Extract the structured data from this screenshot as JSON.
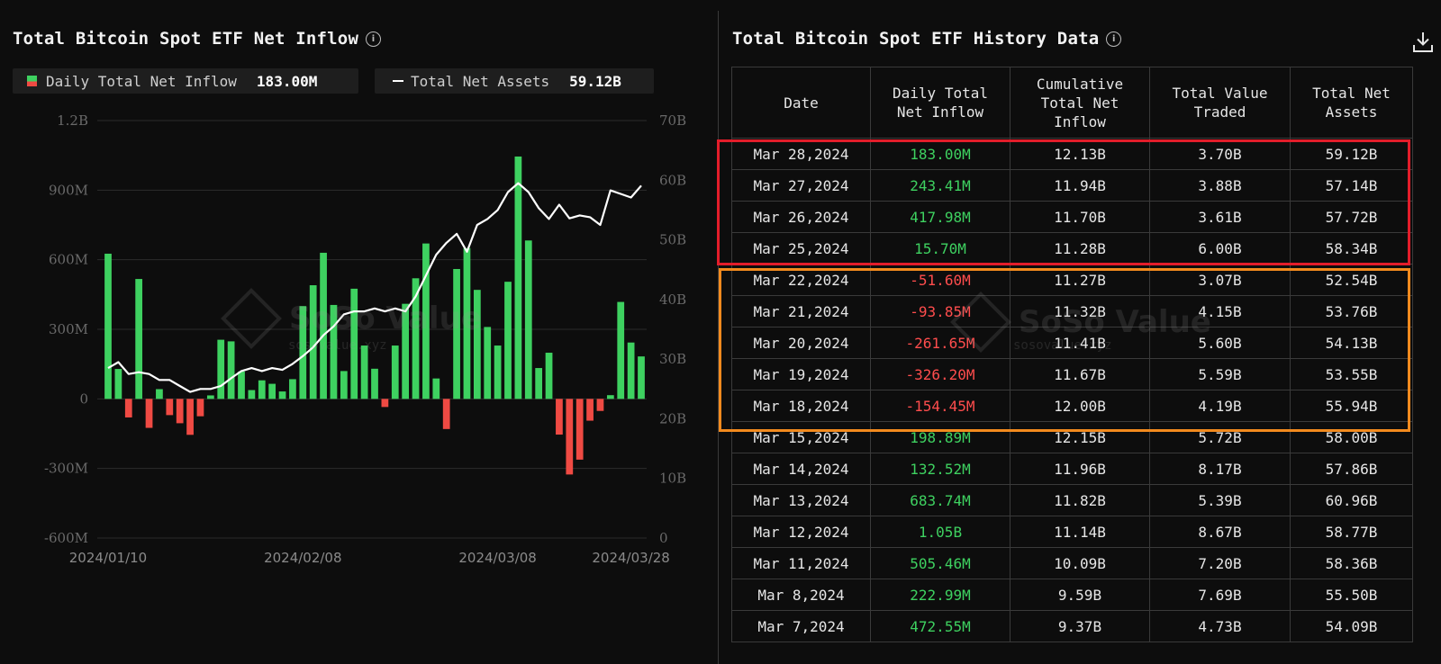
{
  "left": {
    "title": "Total Bitcoin Spot ETF Net Inflow",
    "legend": {
      "bar_label": "Daily Total Net Inflow",
      "bar_value": "183.00M",
      "line_label": "Total Net Assets",
      "line_value": "59.12B"
    }
  },
  "watermark": {
    "brand": "SoSo Value",
    "url": "sosovalue.xyz"
  },
  "colors": {
    "inflow": "#3ed160",
    "outflow": "#ef4a43",
    "line": "#ffffff",
    "highlight_red": "#e31d2a",
    "highlight_orange": "#f28a1e"
  },
  "chart_data": {
    "type": "bar",
    "title": "Total Bitcoin Spot ETF Net Inflow",
    "x_tick_labels": [
      "2024/01/10",
      "2024/02/08",
      "2024/03/08",
      "2024/03/28"
    ],
    "x_tick_indices": [
      0,
      19,
      38,
      51
    ],
    "y_left": {
      "ticks": [
        "-600M",
        "-300M",
        "0",
        "300M",
        "600M",
        "900M",
        "1.2B"
      ],
      "min": -600,
      "max": 1200,
      "unit": "M"
    },
    "y_right": {
      "ticks": [
        "0",
        "10B",
        "20B",
        "30B",
        "40B",
        "50B",
        "60B",
        "70B"
      ],
      "min": 0,
      "max": 70,
      "unit": "B"
    },
    "series": [
      {
        "name": "Daily Total Net Inflow",
        "type": "bar",
        "axis": "left",
        "values": [
          626,
          129,
          -80,
          517,
          -125,
          42,
          -70,
          -105,
          -155,
          -75,
          15,
          255,
          248,
          118,
          38,
          80,
          65,
          32,
          85,
          400,
          490,
          630,
          405,
          120,
          475,
          230,
          130,
          -35,
          230,
          410,
          520,
          670,
          88,
          -130,
          560,
          650,
          470,
          310,
          230,
          505,
          1045,
          683,
          133,
          199,
          -154,
          -326,
          -262,
          -94,
          -52,
          16,
          418,
          243,
          183
        ]
      },
      {
        "name": "Total Net Assets",
        "type": "line",
        "axis": "right",
        "values": [
          28.5,
          29.5,
          27.5,
          27.8,
          27.5,
          26.5,
          26.5,
          25.5,
          24.5,
          25.0,
          25.0,
          25.5,
          26.8,
          28.0,
          28.5,
          28.0,
          28.5,
          28.2,
          29.2,
          30.5,
          32.0,
          34.0,
          35.5,
          37.5,
          38.0,
          38.0,
          38.5,
          38.0,
          38.5,
          38.0,
          40.5,
          44.0,
          47.5,
          49.5,
          51.0,
          48.0,
          52.5,
          53.5,
          55.0,
          58.0,
          59.5,
          58.0,
          55.3,
          53.5,
          55.9,
          53.6,
          54.1,
          53.8,
          52.5,
          58.3,
          57.7,
          57.1,
          59.1
        ]
      }
    ]
  },
  "right": {
    "title": "Total Bitcoin Spot ETF History Data",
    "columns": [
      [
        "Date"
      ],
      [
        "Daily Total",
        "Net Inflow"
      ],
      [
        "Cumulative",
        "Total Net",
        "Inflow"
      ],
      [
        "Total Value",
        "Traded"
      ],
      [
        "Total Net",
        "Assets"
      ]
    ],
    "rows": [
      {
        "date": "Mar 28,2024",
        "inflow": "183.00M",
        "sign": "pos",
        "cumulative": "12.13B",
        "traded": "3.70B",
        "assets": "59.12B"
      },
      {
        "date": "Mar 27,2024",
        "inflow": "243.41M",
        "sign": "pos",
        "cumulative": "11.94B",
        "traded": "3.88B",
        "assets": "57.14B"
      },
      {
        "date": "Mar 26,2024",
        "inflow": "417.98M",
        "sign": "pos",
        "cumulative": "11.70B",
        "traded": "3.61B",
        "assets": "57.72B"
      },
      {
        "date": "Mar 25,2024",
        "inflow": "15.70M",
        "sign": "pos",
        "cumulative": "11.28B",
        "traded": "6.00B",
        "assets": "58.34B"
      },
      {
        "date": "Mar 22,2024",
        "inflow": "-51.60M",
        "sign": "neg",
        "cumulative": "11.27B",
        "traded": "3.07B",
        "assets": "52.54B"
      },
      {
        "date": "Mar 21,2024",
        "inflow": "-93.85M",
        "sign": "neg",
        "cumulative": "11.32B",
        "traded": "4.15B",
        "assets": "53.76B"
      },
      {
        "date": "Mar 20,2024",
        "inflow": "-261.65M",
        "sign": "neg",
        "cumulative": "11.41B",
        "traded": "5.60B",
        "assets": "54.13B"
      },
      {
        "date": "Mar 19,2024",
        "inflow": "-326.20M",
        "sign": "neg",
        "cumulative": "11.67B",
        "traded": "5.59B",
        "assets": "53.55B"
      },
      {
        "date": "Mar 18,2024",
        "inflow": "-154.45M",
        "sign": "neg",
        "cumulative": "12.00B",
        "traded": "4.19B",
        "assets": "55.94B"
      },
      {
        "date": "Mar 15,2024",
        "inflow": "198.89M",
        "sign": "pos",
        "cumulative": "12.15B",
        "traded": "5.72B",
        "assets": "58.00B"
      },
      {
        "date": "Mar 14,2024",
        "inflow": "132.52M",
        "sign": "pos",
        "cumulative": "11.96B",
        "traded": "8.17B",
        "assets": "57.86B"
      },
      {
        "date": "Mar 13,2024",
        "inflow": "683.74M",
        "sign": "pos",
        "cumulative": "11.82B",
        "traded": "5.39B",
        "assets": "60.96B"
      },
      {
        "date": "Mar 12,2024",
        "inflow": "1.05B",
        "sign": "pos",
        "cumulative": "11.14B",
        "traded": "8.67B",
        "assets": "58.77B"
      },
      {
        "date": "Mar 11,2024",
        "inflow": "505.46M",
        "sign": "pos",
        "cumulative": "10.09B",
        "traded": "7.20B",
        "assets": "58.36B"
      },
      {
        "date": "Mar 8,2024",
        "inflow": "222.99M",
        "sign": "pos",
        "cumulative": "9.59B",
        "traded": "7.69B",
        "assets": "55.50B"
      },
      {
        "date": "Mar 7,2024",
        "inflow": "472.55M",
        "sign": "pos",
        "cumulative": "9.37B",
        "traded": "4.73B",
        "assets": "54.09B"
      }
    ]
  }
}
